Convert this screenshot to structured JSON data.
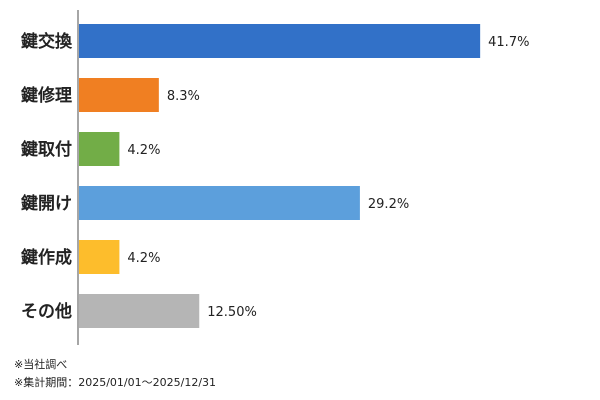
{
  "chart_data": {
    "type": "bar",
    "orientation": "horizontal",
    "categories": [
      "鍵交換",
      "鍵修理",
      "鍵取付",
      "鍵開け",
      "鍵作成",
      "その他"
    ],
    "values": [
      41.7,
      8.3,
      4.2,
      29.2,
      4.2,
      12.5
    ],
    "value_labels": [
      "41.7%",
      "8.3%",
      "4.2%",
      "29.2%",
      "4.2%",
      "12.50%"
    ],
    "colors": [
      "#3271c8",
      "#f07f22",
      "#72ad47",
      "#5c9fdc",
      "#fdbd2c",
      "#b5b5b5"
    ],
    "title": "",
    "xlabel": "",
    "ylabel": "",
    "xlim": [
      0,
      50
    ],
    "grid": false,
    "legend": "none"
  },
  "notes": [
    "※当社調べ",
    "※集計期間：2025/01/01〜2025/12/31"
  ]
}
